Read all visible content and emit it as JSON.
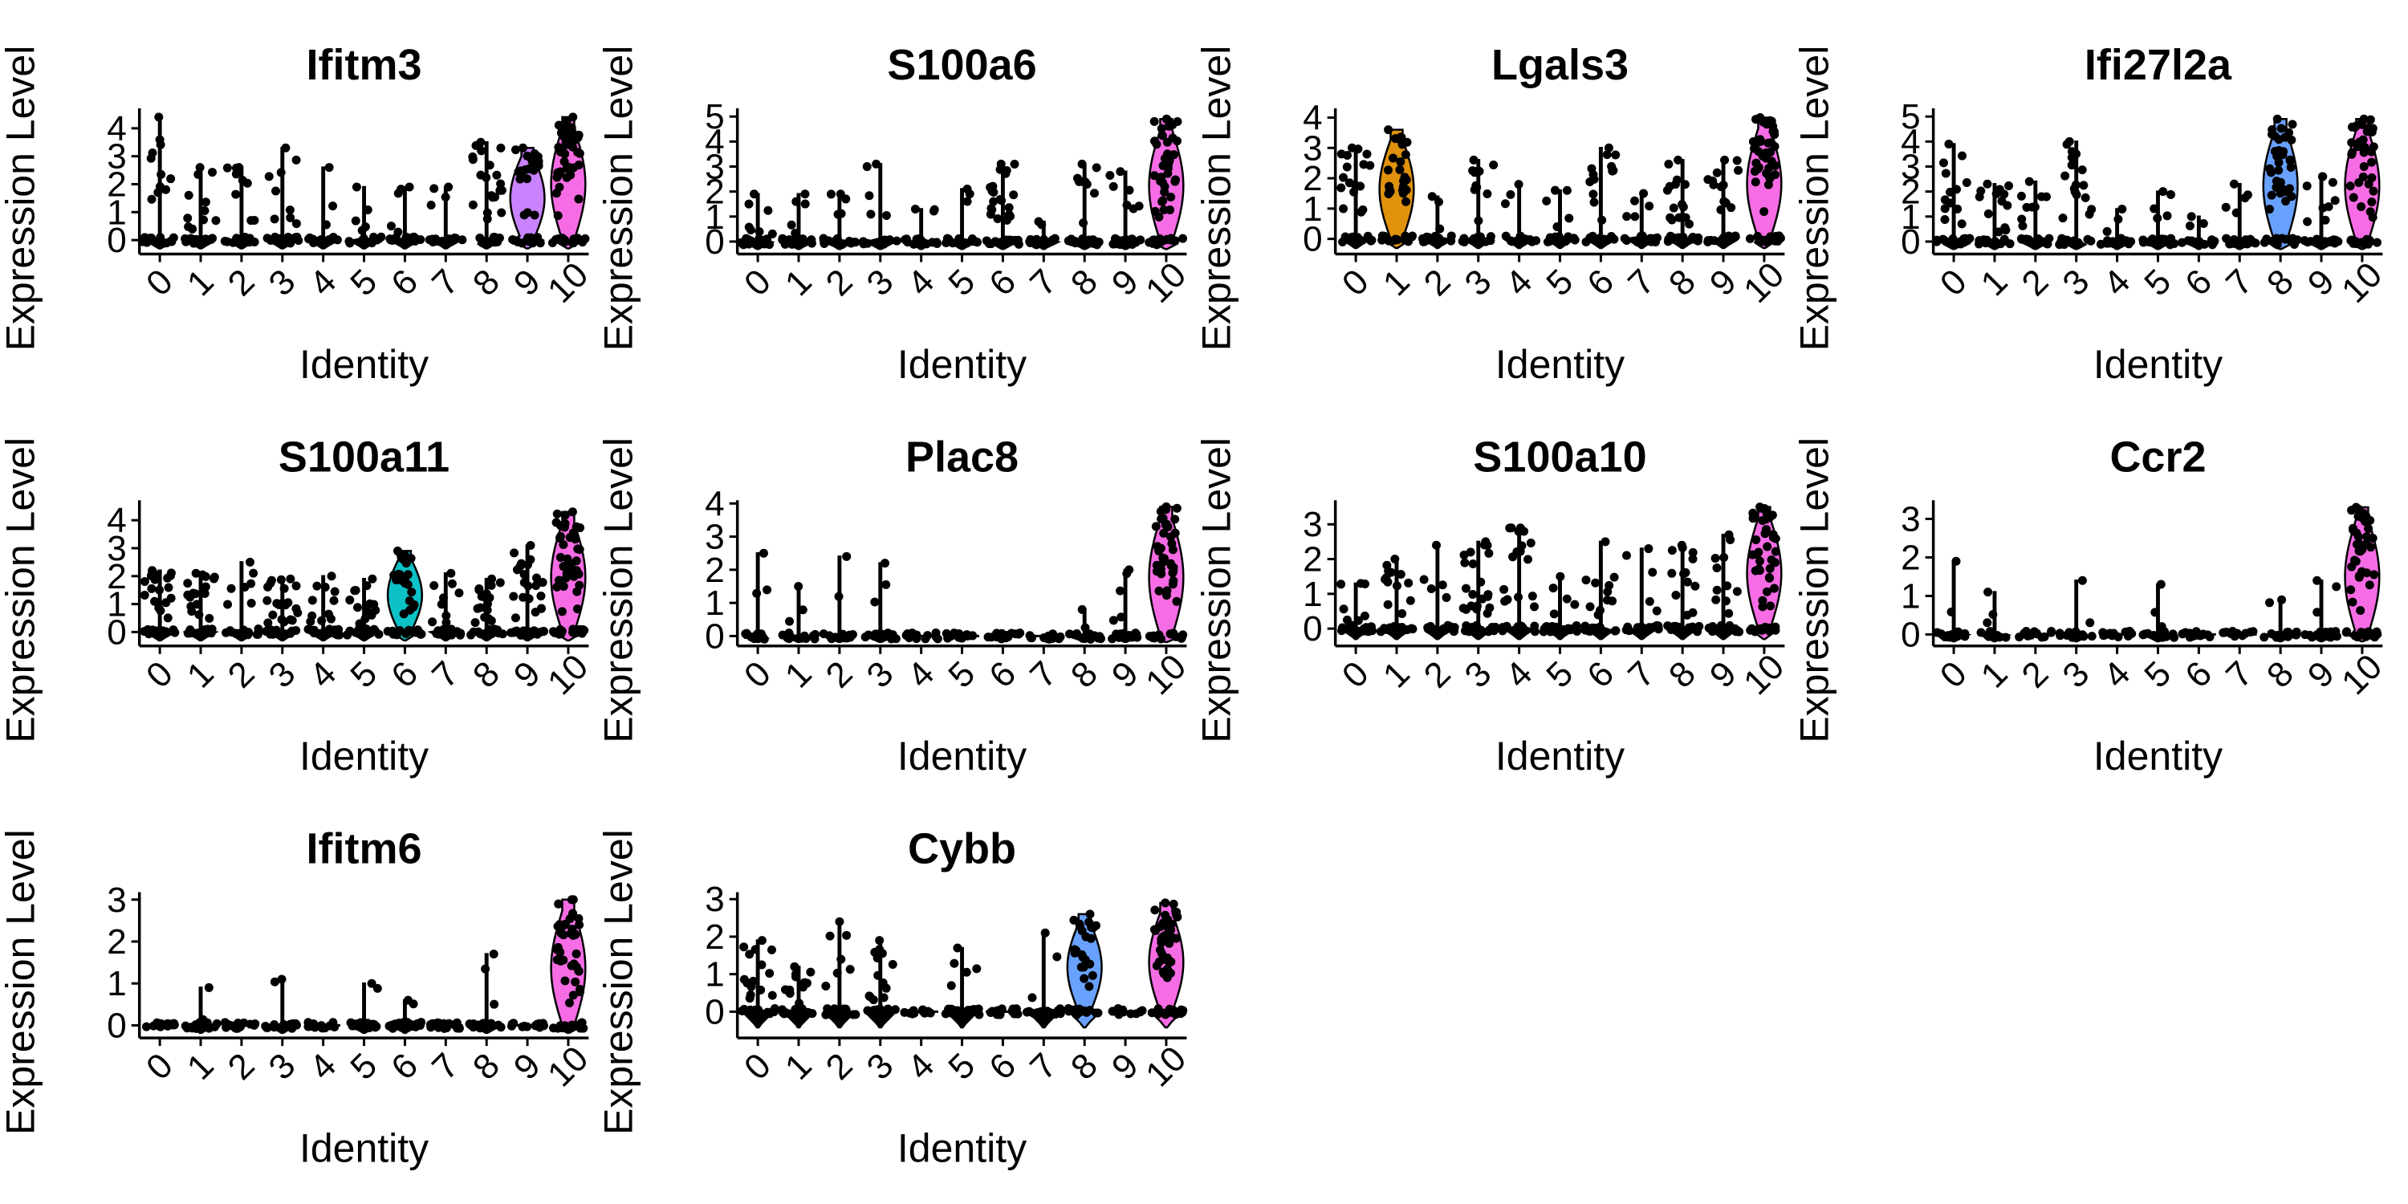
{
  "chart_data": [
    {
      "type": "violin",
      "title": "Ifitm3",
      "xlabel": "Identity",
      "ylabel": "Expression Level",
      "categories": [
        "0",
        "1",
        "2",
        "3",
        "4",
        "5",
        "6",
        "7",
        "8",
        "9",
        "10"
      ],
      "yticks": [
        0,
        1,
        2,
        3,
        4
      ],
      "ylim": [
        -0.5,
        4.6
      ],
      "max_values": [
        4.4,
        2.6,
        2.6,
        3.3,
        2.6,
        1.9,
        1.9,
        1.9,
        3.5,
        3.3,
        4.4
      ],
      "nonzero_fraction": [
        0.25,
        0.25,
        0.2,
        0.2,
        0.05,
        0.1,
        0.1,
        0.08,
        0.5,
        0.6,
        0.95
      ],
      "fill_colors": [
        "#F8766D",
        "#DE8C00",
        "#B79F00",
        "#7CAE00",
        "#00BA38",
        "#00C08B",
        "#00BFC4",
        "#00B4F0",
        "#619CFF",
        "#C77CFF",
        "#F564E3"
      ]
    },
    {
      "type": "violin",
      "title": "S100a6",
      "xlabel": "Identity",
      "ylabel": "Expression Level",
      "categories": [
        "0",
        "1",
        "2",
        "3",
        "4",
        "5",
        "6",
        "7",
        "8",
        "9",
        "10"
      ],
      "yticks": [
        0,
        1,
        2,
        3,
        4,
        5
      ],
      "ylim": [
        -0.5,
        5.2
      ],
      "max_values": [
        1.9,
        1.9,
        1.9,
        3.1,
        1.3,
        2.1,
        3.1,
        0.8,
        3.1,
        2.8,
        4.9
      ],
      "nonzero_fraction": [
        0.15,
        0.1,
        0.1,
        0.1,
        0.05,
        0.05,
        0.5,
        0.03,
        0.2,
        0.15,
        0.95
      ],
      "fill_colors": [
        "#F8766D",
        "#DE8C00",
        "#B79F00",
        "#7CAE00",
        "#00BA38",
        "#00C08B",
        "#00BFC4",
        "#00B4F0",
        "#619CFF",
        "#C77CFF",
        "#F564E3"
      ]
    },
    {
      "type": "violin",
      "title": "Lgals3",
      "xlabel": "Identity",
      "ylabel": "Expression Level",
      "categories": [
        "0",
        "1",
        "2",
        "3",
        "4",
        "5",
        "6",
        "7",
        "8",
        "9",
        "10"
      ],
      "yticks": [
        0,
        1,
        2,
        3,
        4
      ],
      "ylim": [
        -0.5,
        4.2
      ],
      "max_values": [
        3.0,
        3.6,
        1.4,
        2.6,
        1.8,
        1.6,
        3.0,
        1.5,
        2.6,
        2.6,
        4.0
      ],
      "nonzero_fraction": [
        0.4,
        0.6,
        0.05,
        0.25,
        0.05,
        0.1,
        0.3,
        0.1,
        0.35,
        0.3,
        0.95
      ],
      "fill_colors": [
        "#F8766D",
        "#DE8C00",
        "#B79F00",
        "#7CAE00",
        "#00BA38",
        "#00C08B",
        "#00BFC4",
        "#00B4F0",
        "#619CFF",
        "#C77CFF",
        "#F564E3"
      ]
    },
    {
      "type": "violin",
      "title": "Ifi27l2a",
      "xlabel": "Identity",
      "ylabel": "Expression Level",
      "categories": [
        "0",
        "1",
        "2",
        "3",
        "4",
        "5",
        "6",
        "7",
        "8",
        "9",
        "10"
      ],
      "yticks": [
        0,
        1,
        2,
        3,
        4,
        5
      ],
      "ylim": [
        -0.5,
        5.2
      ],
      "max_values": [
        3.9,
        2.3,
        2.4,
        4.0,
        1.3,
        2.0,
        1.0,
        2.3,
        4.9,
        2.6,
        4.9
      ],
      "nonzero_fraction": [
        0.3,
        0.3,
        0.2,
        0.4,
        0.05,
        0.1,
        0.05,
        0.1,
        0.8,
        0.2,
        0.85
      ],
      "fill_colors": [
        "#F8766D",
        "#DE8C00",
        "#B79F00",
        "#7CAE00",
        "#00BA38",
        "#00C08B",
        "#00BFC4",
        "#00B4F0",
        "#619CFF",
        "#C77CFF",
        "#F564E3"
      ]
    },
    {
      "type": "violin",
      "title": "S100a11",
      "xlabel": "Identity",
      "ylabel": "Expression Level",
      "categories": [
        "0",
        "1",
        "2",
        "3",
        "4",
        "5",
        "6",
        "7",
        "8",
        "9",
        "10"
      ],
      "yticks": [
        0,
        1,
        2,
        3,
        4
      ],
      "ylim": [
        -0.5,
        4.6
      ],
      "max_values": [
        2.2,
        2.1,
        2.5,
        1.9,
        2.0,
        1.9,
        2.9,
        2.1,
        1.9,
        3.1,
        4.3
      ],
      "nonzero_fraction": [
        0.45,
        0.4,
        0.15,
        0.5,
        0.25,
        0.3,
        0.55,
        0.2,
        0.4,
        0.5,
        0.95
      ],
      "fill_colors": [
        "#F8766D",
        "#DE8C00",
        "#B79F00",
        "#7CAE00",
        "#00BA38",
        "#00C08B",
        "#00BFC4",
        "#00B4F0",
        "#619CFF",
        "#C77CFF",
        "#F564E3"
      ]
    },
    {
      "type": "violin",
      "title": "Plac8",
      "xlabel": "Identity",
      "ylabel": "Expression Level",
      "categories": [
        "0",
        "1",
        "2",
        "3",
        "4",
        "5",
        "6",
        "7",
        "8",
        "9",
        "10"
      ],
      "yticks": [
        0,
        1,
        2,
        3,
        4
      ],
      "ylim": [
        -0.3,
        4.0
      ],
      "max_values": [
        2.5,
        1.5,
        2.4,
        2.2,
        0,
        0,
        0,
        0,
        0.8,
        2.0,
        3.9
      ],
      "nonzero_fraction": [
        0.04,
        0.05,
        0.02,
        0.05,
        0,
        0,
        0,
        0,
        0.02,
        0.1,
        0.95
      ],
      "fill_colors": [
        "#F8766D",
        "#DE8C00",
        "#B79F00",
        "#7CAE00",
        "#00BA38",
        "#00C08B",
        "#00BFC4",
        "#00B4F0",
        "#619CFF",
        "#C77CFF",
        "#F564E3"
      ]
    },
    {
      "type": "violin",
      "title": "S100a10",
      "xlabel": "Identity",
      "ylabel": "Expression Level",
      "categories": [
        "0",
        "1",
        "2",
        "3",
        "4",
        "5",
        "6",
        "7",
        "8",
        "9",
        "10"
      ],
      "yticks": [
        0,
        1,
        2,
        3
      ],
      "ylim": [
        -0.5,
        3.6
      ],
      "max_values": [
        1.3,
        2.0,
        2.4,
        2.5,
        2.9,
        1.5,
        2.5,
        2.3,
        2.4,
        2.7,
        3.5
      ],
      "nonzero_fraction": [
        0.15,
        0.3,
        0.1,
        0.5,
        0.4,
        0.1,
        0.25,
        0.1,
        0.3,
        0.25,
        0.95
      ],
      "fill_colors": [
        "#F8766D",
        "#DE8C00",
        "#B79F00",
        "#7CAE00",
        "#00BA38",
        "#00C08B",
        "#00BFC4",
        "#00B4F0",
        "#619CFF",
        "#C77CFF",
        "#F564E3"
      ]
    },
    {
      "type": "violin",
      "title": "Ccr2",
      "xlabel": "Identity",
      "ylabel": "Expression Level",
      "categories": [
        "0",
        "1",
        "2",
        "3",
        "4",
        "5",
        "6",
        "7",
        "8",
        "9",
        "10"
      ],
      "yticks": [
        0,
        1,
        2,
        3
      ],
      "ylim": [
        -0.3,
        3.4
      ],
      "max_values": [
        1.9,
        1.1,
        0,
        1.4,
        0,
        1.3,
        0,
        0,
        0.9,
        1.4,
        3.3
      ],
      "nonzero_fraction": [
        0.02,
        0.06,
        0,
        0.02,
        0,
        0.04,
        0,
        0,
        0.02,
        0.05,
        0.9
      ],
      "fill_colors": [
        "#F8766D",
        "#DE8C00",
        "#B79F00",
        "#7CAE00",
        "#00BA38",
        "#00C08B",
        "#00BFC4",
        "#00B4F0",
        "#619CFF",
        "#C77CFF",
        "#F564E3"
      ]
    },
    {
      "type": "violin",
      "title": "Ifitm6",
      "xlabel": "Identity",
      "ylabel": "Expression Level",
      "categories": [
        "0",
        "1",
        "2",
        "3",
        "4",
        "5",
        "6",
        "7",
        "8",
        "9",
        "10"
      ],
      "yticks": [
        0,
        1,
        2,
        3
      ],
      "ylim": [
        -0.3,
        3.1
      ],
      "max_values": [
        0,
        0.9,
        0,
        1.1,
        0,
        1.0,
        0.6,
        0,
        1.7,
        0,
        3.0
      ],
      "nonzero_fraction": [
        0,
        0.02,
        0,
        0.02,
        0,
        0.02,
        0.02,
        0,
        0.05,
        0,
        0.9
      ],
      "fill_colors": [
        "#F8766D",
        "#DE8C00",
        "#B79F00",
        "#7CAE00",
        "#00BA38",
        "#00C08B",
        "#00BFC4",
        "#00B4F0",
        "#619CFF",
        "#C77CFF",
        "#F564E3"
      ]
    },
    {
      "type": "violin",
      "title": "Cybb",
      "xlabel": "Identity",
      "ylabel": "Expression Level",
      "categories": [
        "0",
        "1",
        "2",
        "3",
        "4",
        "5",
        "6",
        "7",
        "8",
        "9",
        "10"
      ],
      "yticks": [
        0,
        1,
        2,
        3
      ],
      "ylim": [
        -0.7,
        3.1
      ],
      "max_values": [
        1.9,
        1.2,
        2.4,
        1.9,
        0,
        1.7,
        0,
        2.1,
        2.6,
        0,
        2.9
      ],
      "nonzero_fraction": [
        0.35,
        0.25,
        0.15,
        0.3,
        0,
        0.1,
        0,
        0.05,
        0.55,
        0,
        0.9
      ],
      "fill_colors": [
        "#F8766D",
        "#DE8C00",
        "#B79F00",
        "#7CAE00",
        "#00BA38",
        "#00C08B",
        "#00BFC4",
        "#00B4F0",
        "#619CFF",
        "#C77CFF",
        "#F564E3"
      ]
    }
  ]
}
